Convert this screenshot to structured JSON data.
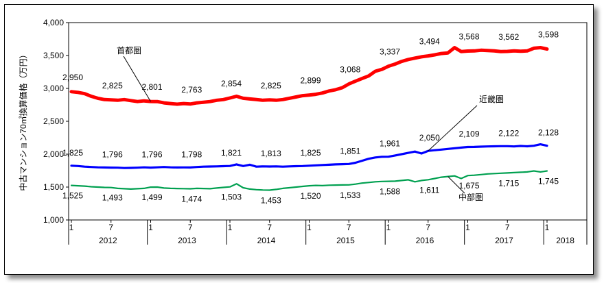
{
  "chart_data": {
    "type": "line",
    "ylabel": "中古マンション70㎡換算価格（万円）",
    "ylim": [
      1000,
      4000
    ],
    "yticks": [
      "1,000",
      "1,500",
      "2,000",
      "2,500",
      "3,000",
      "3,500",
      "4,000"
    ],
    "month_ticks": [
      "1",
      "7",
      "1",
      "7",
      "1",
      "7",
      "1",
      "7",
      "1",
      "7",
      "1",
      "7",
      "1"
    ],
    "years": [
      "2012",
      "2013",
      "2014",
      "2015",
      "2016",
      "2017",
      "2018"
    ],
    "series": [
      {
        "name": "首都圏",
        "color": "#ff0000",
        "values": [
          2950,
          2940,
          2920,
          2880,
          2850,
          2830,
          2825,
          2820,
          2830,
          2815,
          2800,
          2810,
          2801,
          2800,
          2780,
          2770,
          2760,
          2770,
          2763,
          2780,
          2790,
          2800,
          2820,
          2830,
          2854,
          2880,
          2850,
          2840,
          2830,
          2820,
          2825,
          2820,
          2830,
          2850,
          2870,
          2890,
          2899,
          2910,
          2930,
          2960,
          2980,
          3010,
          3068,
          3110,
          3150,
          3190,
          3260,
          3290,
          3337,
          3370,
          3410,
          3440,
          3460,
          3480,
          3494,
          3510,
          3530,
          3540,
          3620,
          3560,
          3568,
          3570,
          3580,
          3575,
          3570,
          3560,
          3562,
          3570,
          3565,
          3570,
          3610,
          3620,
          3598
        ],
        "labels": [
          {
            "i": 0,
            "text": "2,950"
          },
          {
            "i": 6,
            "text": "2,825"
          },
          {
            "i": 12,
            "text": "2,801"
          },
          {
            "i": 18,
            "text": "2,763"
          },
          {
            "i": 24,
            "text": "2,854"
          },
          {
            "i": 30,
            "text": "2,825"
          },
          {
            "i": 36,
            "text": "2,899"
          },
          {
            "i": 42,
            "text": "3,068"
          },
          {
            "i": 48,
            "text": "3,337"
          },
          {
            "i": 54,
            "text": "3,494"
          },
          {
            "i": 60,
            "text": "3,568"
          },
          {
            "i": 66,
            "text": "3,562"
          },
          {
            "i": 72,
            "text": "3,598"
          }
        ]
      },
      {
        "name": "近畿圏",
        "color": "#0000ff",
        "values": [
          1825,
          1820,
          1810,
          1805,
          1800,
          1798,
          1796,
          1795,
          1790,
          1792,
          1795,
          1800,
          1796,
          1800,
          1805,
          1800,
          1798,
          1799,
          1798,
          1805,
          1810,
          1812,
          1815,
          1818,
          1821,
          1845,
          1820,
          1840,
          1810,
          1815,
          1813,
          1815,
          1810,
          1815,
          1818,
          1820,
          1825,
          1830,
          1835,
          1840,
          1845,
          1848,
          1851,
          1870,
          1900,
          1930,
          1950,
          1960,
          1961,
          1980,
          2000,
          2020,
          2040,
          2010,
          2050,
          2060,
          2070,
          2080,
          2090,
          2100,
          2109,
          2110,
          2115,
          2118,
          2120,
          2122,
          2122,
          2118,
          2125,
          2120,
          2128,
          2150,
          2128
        ],
        "labels": [
          {
            "i": 0,
            "text": "1,825"
          },
          {
            "i": 6,
            "text": "1,796"
          },
          {
            "i": 12,
            "text": "1,796"
          },
          {
            "i": 18,
            "text": "1,798"
          },
          {
            "i": 24,
            "text": "1,821"
          },
          {
            "i": 30,
            "text": "1,813"
          },
          {
            "i": 36,
            "text": "1,825"
          },
          {
            "i": 42,
            "text": "1,851"
          },
          {
            "i": 48,
            "text": "1,961"
          },
          {
            "i": 54,
            "text": "2,050"
          },
          {
            "i": 60,
            "text": "2,109"
          },
          {
            "i": 66,
            "text": "2,122"
          },
          {
            "i": 72,
            "text": "2,128"
          }
        ]
      },
      {
        "name": "中部圏",
        "color": "#00a050",
        "values": [
          1525,
          1520,
          1515,
          1505,
          1500,
          1495,
          1493,
          1480,
          1475,
          1470,
          1475,
          1480,
          1499,
          1500,
          1485,
          1480,
          1478,
          1476,
          1474,
          1480,
          1478,
          1475,
          1485,
          1495,
          1503,
          1550,
          1490,
          1470,
          1460,
          1455,
          1453,
          1465,
          1480,
          1490,
          1500,
          1510,
          1520,
          1525,
          1522,
          1528,
          1530,
          1532,
          1533,
          1545,
          1560,
          1570,
          1580,
          1585,
          1588,
          1590,
          1600,
          1610,
          1580,
          1600,
          1611,
          1630,
          1650,
          1660,
          1670,
          1630,
          1675,
          1680,
          1690,
          1700,
          1705,
          1710,
          1715,
          1720,
          1725,
          1730,
          1745,
          1730,
          1745
        ],
        "labels": [
          {
            "i": 0,
            "text": "1,525"
          },
          {
            "i": 6,
            "text": "1,493"
          },
          {
            "i": 12,
            "text": "1,499"
          },
          {
            "i": 18,
            "text": "1,474"
          },
          {
            "i": 24,
            "text": "1,503"
          },
          {
            "i": 30,
            "text": "1,453"
          },
          {
            "i": 36,
            "text": "1,520"
          },
          {
            "i": 42,
            "text": "1,533"
          },
          {
            "i": 48,
            "text": "1,588"
          },
          {
            "i": 54,
            "text": "1,611"
          },
          {
            "i": 60,
            "text": "1,675"
          },
          {
            "i": 66,
            "text": "1,715"
          },
          {
            "i": 72,
            "text": "1,745"
          }
        ]
      }
    ]
  }
}
